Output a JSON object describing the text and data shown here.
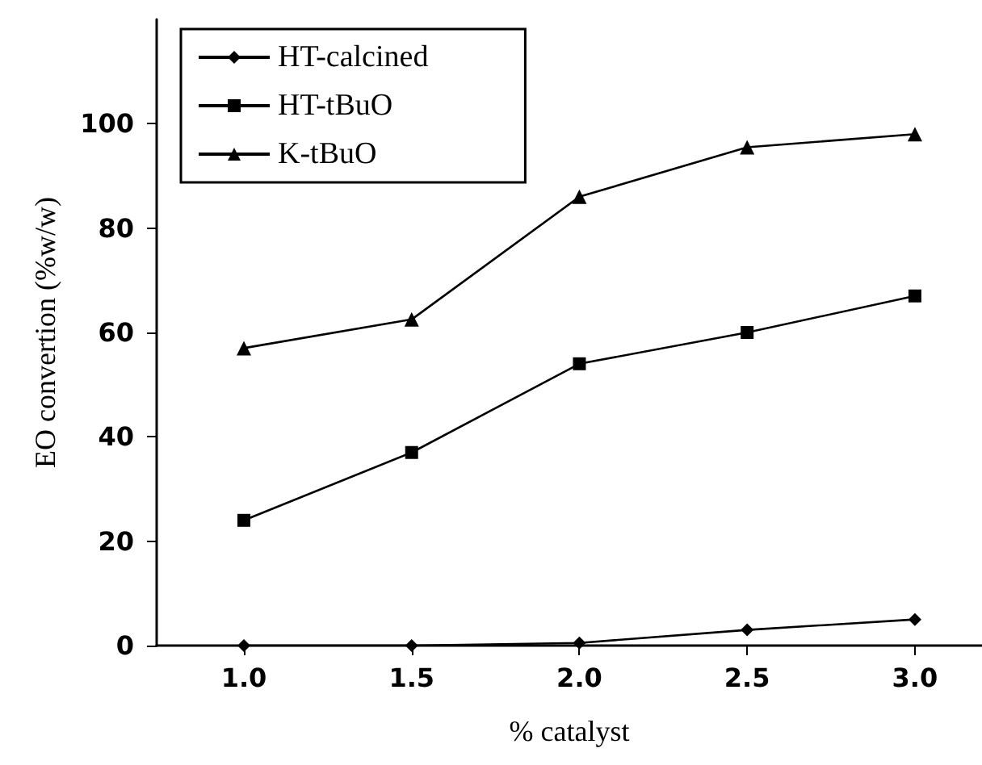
{
  "chart_data": {
    "type": "line",
    "xlabel": "% catalyst",
    "ylabel": "EO convertion (%w/w)",
    "x": [
      1.0,
      1.5,
      2.0,
      2.5,
      3.0
    ],
    "series": [
      {
        "name": "HT-calcined",
        "color": "#000000",
        "marker": "diamond",
        "values": [
          0,
          0,
          0.5,
          3,
          5
        ]
      },
      {
        "name": "HT-tBuO",
        "color": "#000000",
        "marker": "square",
        "values": [
          24,
          37,
          54,
          60,
          67
        ]
      },
      {
        "name": "K-tBuO",
        "color": "#000000",
        "marker": "triangle",
        "values": [
          57,
          62.5,
          86,
          95.5,
          98
        ]
      }
    ],
    "xlim": [
      0.74,
      3.2
    ],
    "xticks": [
      {
        "value": 1.0,
        "label": "1.0"
      },
      {
        "value": 1.5,
        "label": "1.5"
      },
      {
        "value": 2.0,
        "label": "2.0"
      },
      {
        "value": 2.5,
        "label": "2.5"
      },
      {
        "value": 3.0,
        "label": "3.0"
      }
    ],
    "ylim": [
      0,
      120
    ],
    "yticks": [
      0,
      20,
      40,
      60,
      80,
      100
    ],
    "grid": false,
    "legend": "top left",
    "line_style": "solid"
  }
}
